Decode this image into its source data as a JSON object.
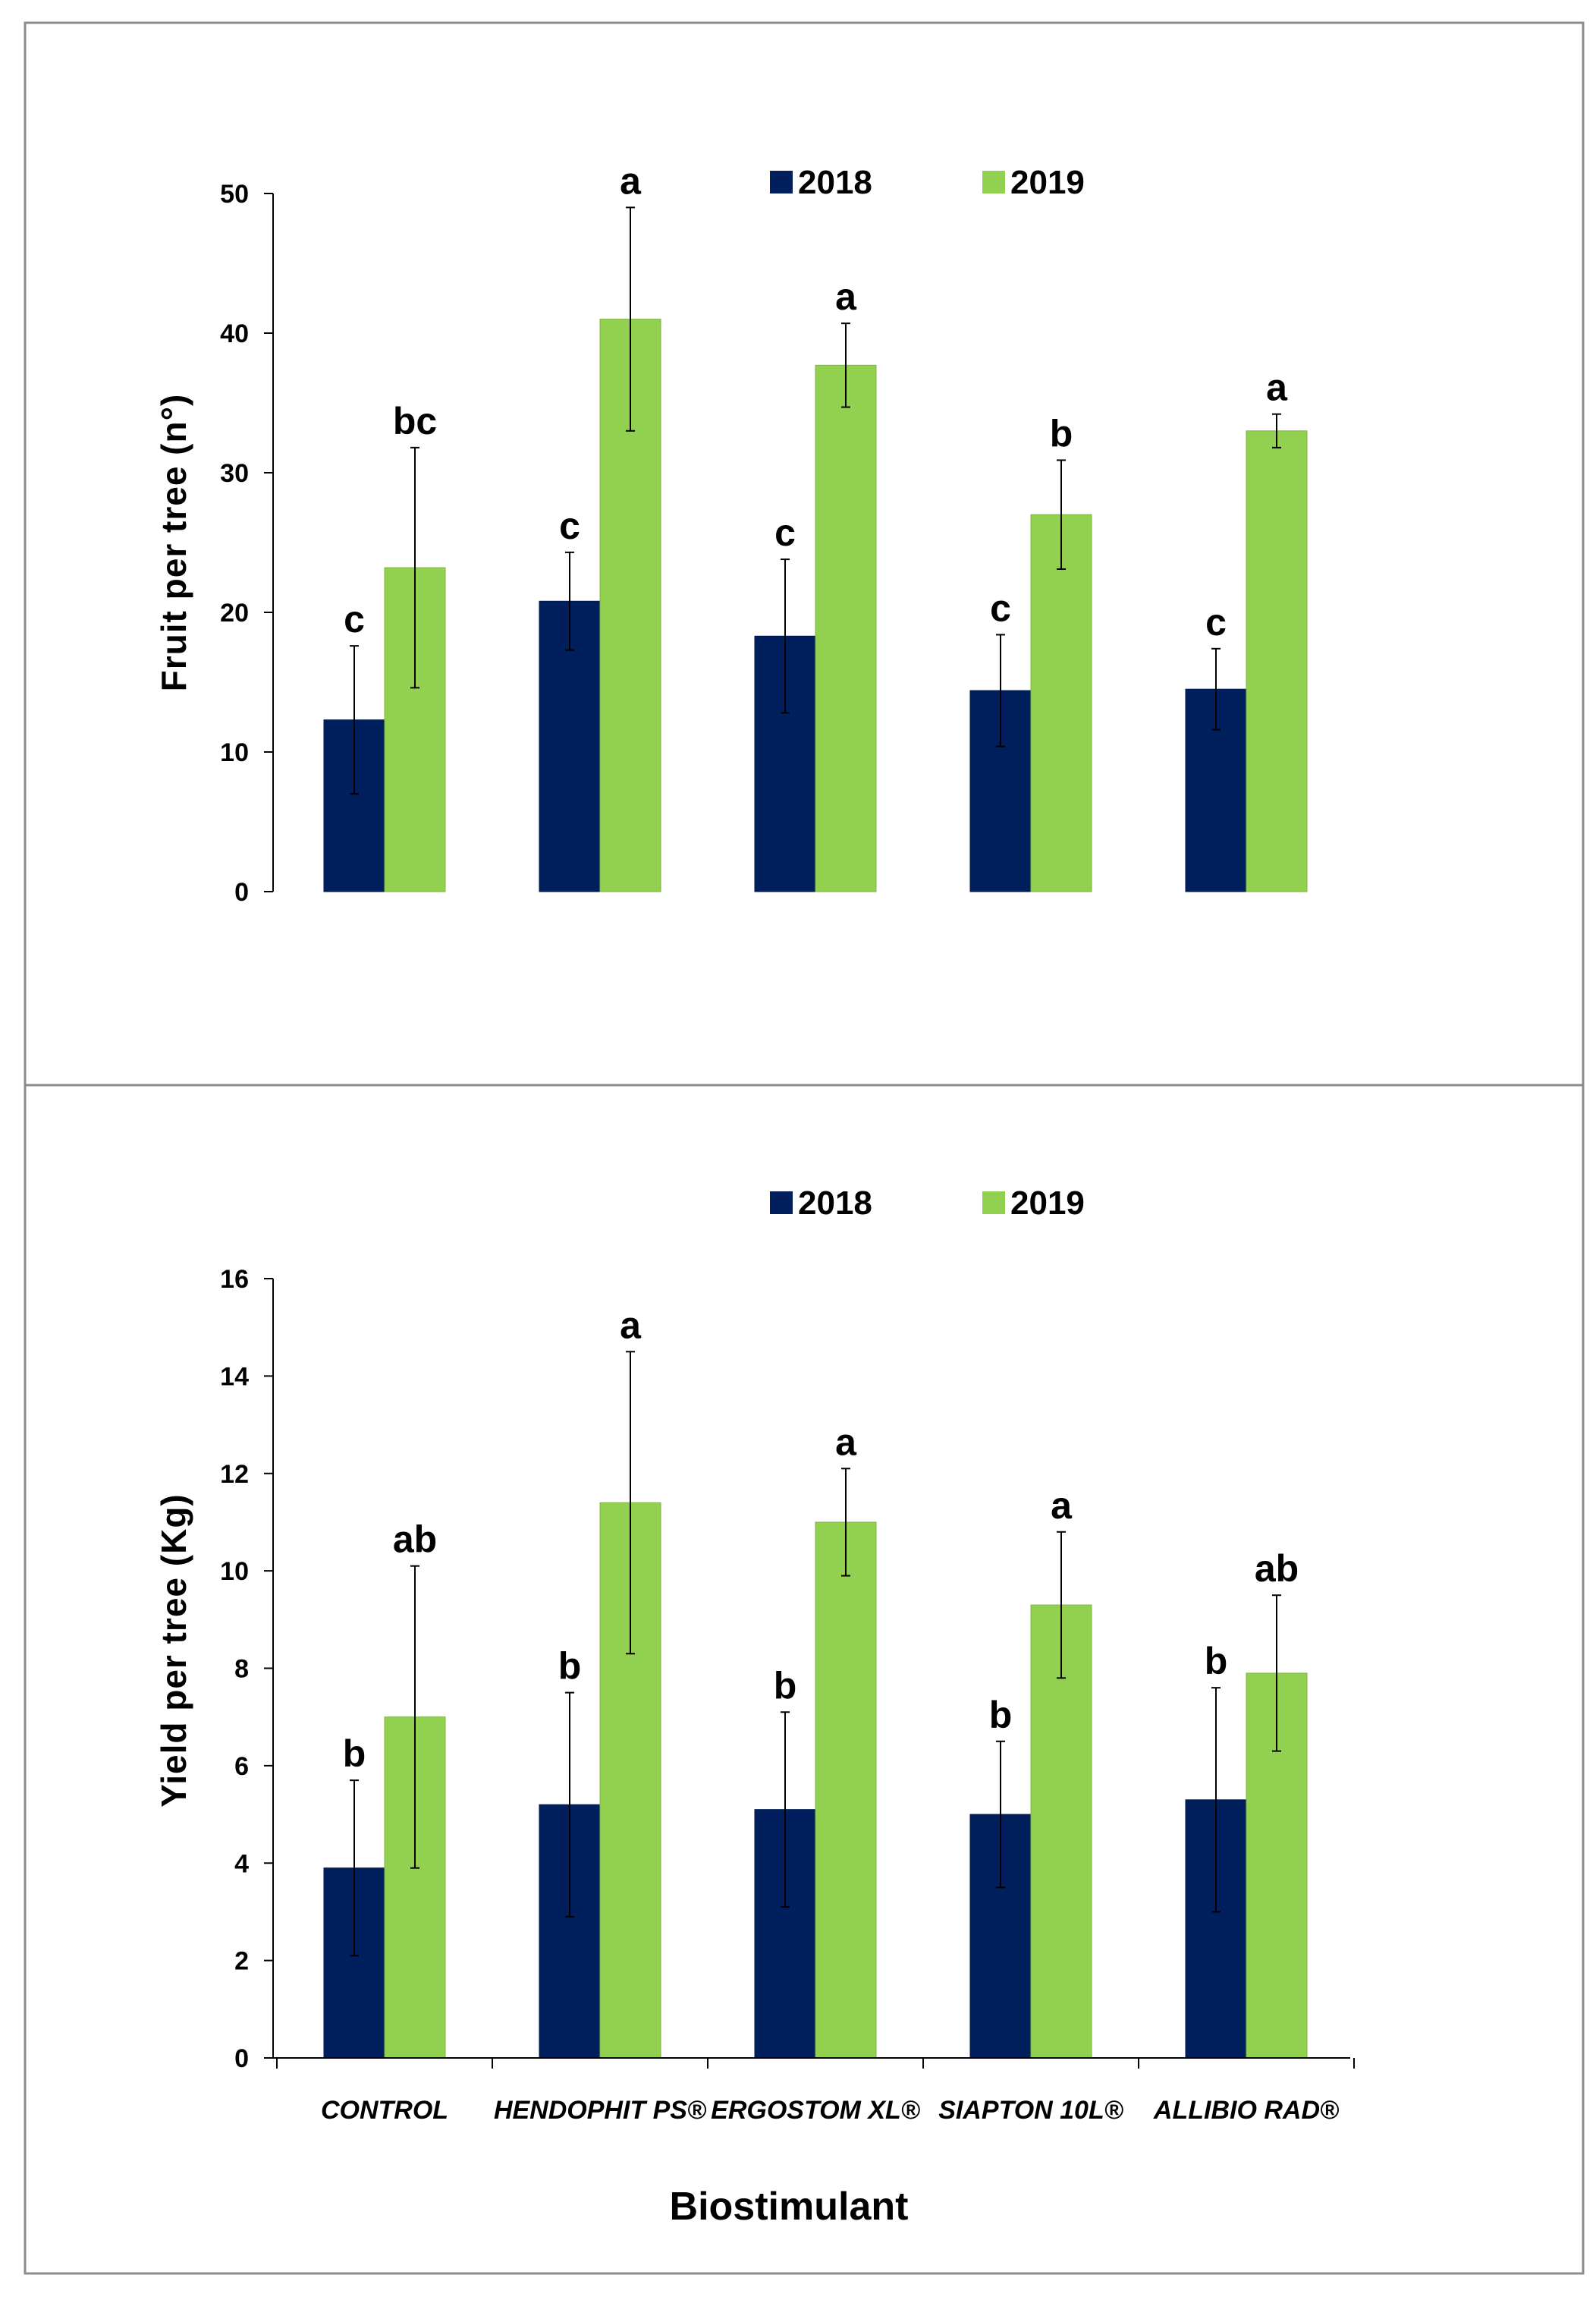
{
  "colors": {
    "y2018": "#001f5c",
    "y2019": "#92d050",
    "axis": "#000000",
    "frame": "#8c8c8c"
  },
  "categories": [
    "CONTROL",
    "HENDOPHIT PS®",
    "ERGOSTOM XL®",
    "SIAPTON 10L®",
    "ALLIBIO RAD®"
  ],
  "xlabel": "Biostimulant",
  "chart_data": [
    {
      "type": "bar",
      "title": "",
      "ylabel": "Fruit per tree (n°)",
      "xlabel": "",
      "ylim": [
        0,
        50
      ],
      "yticks": [
        0,
        10,
        20,
        30,
        40,
        50
      ],
      "legend": "top-center",
      "categories": [
        "CONTROL",
        "HENDOPHIT PS®",
        "ERGOSTOM XL®",
        "SIAPTON 10L®",
        "ALLIBIO RAD®"
      ],
      "series": [
        {
          "name": "2018",
          "values": [
            12.3,
            20.8,
            18.3,
            14.4,
            14.5
          ],
          "errors": [
            5.3,
            3.5,
            5.5,
            4.0,
            2.9
          ],
          "letters": [
            "c",
            "c",
            "c",
            "c",
            "c"
          ]
        },
        {
          "name": "2019",
          "values": [
            23.2,
            41.0,
            37.7,
            27.0,
            33.0
          ],
          "errors": [
            8.6,
            8.0,
            3.0,
            3.9,
            1.2
          ],
          "letters": [
            "bc",
            "a",
            "a",
            "b",
            "a"
          ]
        }
      ]
    },
    {
      "type": "bar",
      "title": "",
      "ylabel": "Yield per tree (Kg)",
      "xlabel": "Biostimulant",
      "ylim": [
        0,
        16
      ],
      "yticks": [
        0,
        2,
        4,
        6,
        8,
        10,
        12,
        14,
        16
      ],
      "legend": "top-center",
      "categories": [
        "CONTROL",
        "HENDOPHIT PS®",
        "ERGOSTOM XL®",
        "SIAPTON 10L®",
        "ALLIBIO RAD®"
      ],
      "series": [
        {
          "name": "2018",
          "values": [
            3.9,
            5.2,
            5.1,
            5.0,
            5.3
          ],
          "errors": [
            1.8,
            2.3,
            2.0,
            1.5,
            2.3
          ],
          "letters": [
            "b",
            "b",
            "b",
            "b",
            "b"
          ]
        },
        {
          "name": "2019",
          "values": [
            7.0,
            11.4,
            11.0,
            9.3,
            7.9
          ],
          "errors": [
            3.1,
            3.1,
            1.1,
            1.5,
            1.6
          ],
          "letters": [
            "ab",
            "a",
            "a",
            "a",
            "ab"
          ]
        }
      ]
    }
  ]
}
